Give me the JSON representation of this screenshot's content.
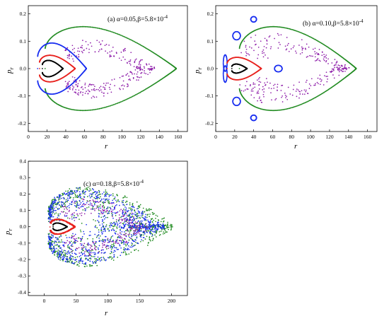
{
  "chart_data": [
    {
      "type": "scatter",
      "panel_label": "(a) α=0.05,β=5.8×10",
      "panel_exponent": "-4",
      "xlabel": "r",
      "ylabel_main": "p",
      "ylabel_sub": "r",
      "xlim": [
        0,
        170
      ],
      "ylim": [
        -0.23,
        0.23
      ],
      "xticks": [
        0,
        20,
        40,
        60,
        80,
        100,
        120,
        140,
        160
      ],
      "yticks": [
        -0.2,
        -0.1,
        0.0,
        0.1,
        0.2
      ],
      "xtick_labels": [
        "0",
        "20",
        "40",
        "60",
        "80",
        "100",
        "120",
        "140",
        "160"
      ],
      "ytick_labels": [
        "-0.2",
        "-0.1",
        "0.0",
        "0.1",
        "0.2"
      ],
      "series": [
        {
          "color": "#000000",
          "kind": "loop",
          "r_min": 15,
          "r_max": 37,
          "p_max": 0.04,
          "noise": 0
        },
        {
          "color": "#e8231f",
          "kind": "loop",
          "r_min": 12,
          "r_max": 50,
          "p_max": 0.065,
          "noise": 0
        },
        {
          "color": "#1a2ff0",
          "kind": "loop",
          "r_min": 10,
          "r_max": 62,
          "p_max": 0.125,
          "noise": 0
        },
        {
          "color": "#8c1aa8",
          "kind": "ring",
          "r_min": 35,
          "r_max": 140,
          "p_max": 0.16,
          "inner_r_min": 52,
          "inner_r_max": 110,
          "inner_p_max": 0.06,
          "noise": 0.004
        },
        {
          "color": "#1f8a1f",
          "kind": "loop",
          "r_min": 18,
          "r_max": 158,
          "p_max": 0.205,
          "noise": 0
        }
      ]
    },
    {
      "type": "scatter",
      "panel_label": "(b) α=0.10,β=5.8×10",
      "panel_exponent": "-4",
      "xlabel": "r",
      "ylabel_main": "p",
      "ylabel_sub": "r",
      "xlim": [
        0,
        170
      ],
      "ylim": [
        -0.23,
        0.23
      ],
      "xticks": [
        0,
        20,
        40,
        60,
        80,
        100,
        120,
        140,
        160
      ],
      "yticks": [
        -0.2,
        -0.1,
        0.0,
        0.1,
        0.2
      ],
      "xtick_labels": [
        "0",
        "20",
        "40",
        "60",
        "80",
        "100",
        "120",
        "140",
        "160"
      ],
      "ytick_labels": [
        "-0.2",
        "-0.1",
        "0.0",
        "0.1",
        "0.2"
      ],
      "series": [
        {
          "color": "#000000",
          "kind": "loop",
          "r_min": 17,
          "r_max": 33,
          "p_max": 0.022,
          "noise": 0
        },
        {
          "color": "#e8231f",
          "kind": "loop",
          "r_min": 12,
          "r_max": 48,
          "p_max": 0.055,
          "noise": 0
        },
        {
          "color": "#1a2ff0",
          "kind": "islands",
          "noise": 0
        },
        {
          "color": "#8c1aa8",
          "kind": "ring",
          "r_min": 15,
          "r_max": 145,
          "p_max": 0.19,
          "inner_r_min": 60,
          "inner_r_max": 120,
          "inner_p_max": 0.06,
          "noise": 0.012
        },
        {
          "color": "#1f8a1f",
          "kind": "loop",
          "r_min": 25,
          "r_max": 148,
          "p_max": 0.205,
          "noise": 0
        }
      ]
    },
    {
      "type": "scatter",
      "panel_label": "(c) α=0.18,β=5.8×10",
      "panel_exponent": "-4",
      "xlabel": "r",
      "ylabel_main": "p",
      "ylabel_sub": "r",
      "xlim": [
        -25,
        225
      ],
      "ylim": [
        -0.42,
        0.4
      ],
      "xticks": [
        0,
        50,
        100,
        150,
        200
      ],
      "yticks": [
        -0.4,
        -0.3,
        -0.2,
        -0.1,
        0.0,
        0.1,
        0.2,
        0.3,
        0.4
      ],
      "xtick_labels": [
        "0",
        "50",
        "100",
        "150",
        "200"
      ],
      "ytick_labels": [
        "-0.4",
        "-0.3",
        "-0.2",
        "-0.1",
        "0.0",
        "0.1",
        "0.2",
        "0.3",
        "0.4"
      ],
      "series": [
        {
          "color": "#000000",
          "kind": "loop",
          "r_min": 14,
          "r_max": 36,
          "p_max": 0.03,
          "noise": 0
        },
        {
          "color": "#e8231f",
          "kind": "loop",
          "r_min": 10,
          "r_max": 48,
          "p_max": 0.06,
          "noise": 0.004
        },
        {
          "color": "#1a2ff0",
          "kind": "chaos",
          "r_min": 8,
          "r_max": 190,
          "p_max": 0.31,
          "noise": 0.05
        },
        {
          "color": "#8c1aa8",
          "kind": "ring",
          "r_min": 20,
          "r_max": 175,
          "p_max": 0.26,
          "inner_r_min": 55,
          "inner_r_max": 130,
          "inner_p_max": 0.09,
          "noise": 0.02
        },
        {
          "color": "#1f8a1f",
          "kind": "chaos",
          "r_min": 8,
          "r_max": 205,
          "p_max": 0.32,
          "noise": 0.04
        }
      ]
    }
  ]
}
